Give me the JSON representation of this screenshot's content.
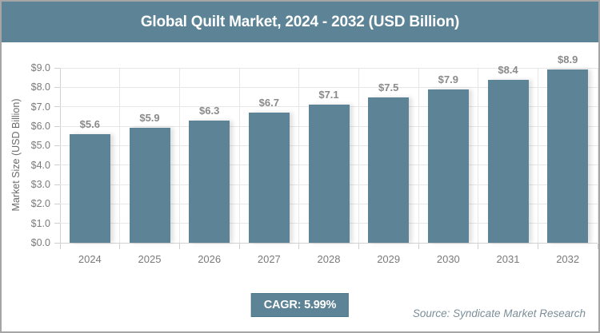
{
  "header": {
    "title": "Global Quilt Market, 2024 - 2032 (USD Billion)"
  },
  "chart_data": {
    "type": "bar",
    "title": "Global Quilt Market, 2024 - 2032 (USD Billion)",
    "categories": [
      "2024",
      "2025",
      "2026",
      "2027",
      "2028",
      "2029",
      "2030",
      "2031",
      "2032"
    ],
    "values": [
      5.6,
      5.9,
      6.3,
      6.7,
      7.1,
      7.5,
      7.9,
      8.4,
      8.9
    ],
    "value_labels": [
      "$5.6",
      "$5.9",
      "$6.3",
      "$6.7",
      "$7.1",
      "$7.5",
      "$7.9",
      "$8.4",
      "$8.9"
    ],
    "xlabel": "",
    "ylabel": "Market Size (USD Billion)",
    "ylim": [
      0,
      9
    ],
    "ytick_step": 1,
    "ytick_labels": [
      "$0.0",
      "$1.0",
      "$2.0",
      "$3.0",
      "$4.0",
      "$5.0",
      "$6.0",
      "$7.0",
      "$8.0",
      "$9.0"
    ],
    "grid": true,
    "legend": "none",
    "bar_color": "#5d8496"
  },
  "footer": {
    "cagr_label": "CAGR: 5.99%",
    "source": "Source: Syndicate Market Research"
  },
  "colors": {
    "accent_teal": "#5d8496",
    "badge_border": "#4d7889",
    "gridline": "#e7e7e7",
    "axis": "#d2d2d2",
    "tick_text": "#7a7a7a",
    "value_label_text": "#8a8a8a",
    "source_text": "#7c8e98",
    "canvas_border": "#a5a5a5",
    "title_text": "#ffffff"
  }
}
